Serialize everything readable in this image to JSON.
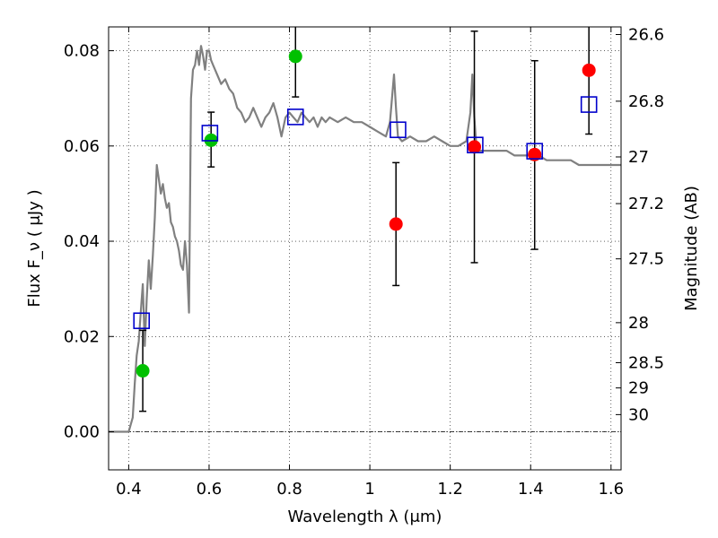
{
  "chart_data": {
    "type": "scatter",
    "xlabel": "Wavelength  λ (μm)",
    "ylabel": "Flux  F_ν  ( μJy )",
    "y2label": "Magnitude (AB)",
    "xlim": [
      0.35,
      1.625
    ],
    "ylim": [
      -0.008,
      0.085
    ],
    "grid": true,
    "x_ticks": [
      {
        "value": 0.4,
        "label": "0.4"
      },
      {
        "value": 0.6,
        "label": "0.6"
      },
      {
        "value": 0.8,
        "label": "0.8"
      },
      {
        "value": 1.0,
        "label": "1"
      },
      {
        "value": 1.2,
        "label": "1.2"
      },
      {
        "value": 1.4,
        "label": "1.4"
      },
      {
        "value": 1.6,
        "label": "1.6"
      }
    ],
    "y_ticks": [
      {
        "value": 0.0,
        "label": "0.00"
      },
      {
        "value": 0.02,
        "label": "0.02"
      },
      {
        "value": 0.04,
        "label": "0.04"
      },
      {
        "value": 0.06,
        "label": "0.06"
      },
      {
        "value": 0.08,
        "label": "0.08"
      }
    ],
    "y2_ticks": [
      {
        "flux": 0.0834,
        "label": "26.6"
      },
      {
        "flux": 0.0694,
        "label": "26.8"
      },
      {
        "flux": 0.0577,
        "label": "27"
      },
      {
        "flux": 0.0479,
        "label": "27.2"
      },
      {
        "flux": 0.0363,
        "label": "27.5"
      },
      {
        "flux": 0.0229,
        "label": "28"
      },
      {
        "flux": 0.0145,
        "label": "28.5"
      },
      {
        "flux": 0.0092,
        "label": "29"
      },
      {
        "flux": 0.0036,
        "label": "30"
      }
    ],
    "colors": {
      "model": "#808080",
      "detected": "#00c000",
      "marginal": "#ff0000",
      "model_flux": "#0000cc",
      "errorbar": "#000000"
    },
    "model_spectrum": {
      "x": [
        0.35,
        0.4,
        0.41,
        0.415,
        0.42,
        0.425,
        0.43,
        0.435,
        0.44,
        0.445,
        0.45,
        0.455,
        0.46,
        0.465,
        0.47,
        0.475,
        0.48,
        0.485,
        0.49,
        0.495,
        0.5,
        0.505,
        0.51,
        0.515,
        0.52,
        0.525,
        0.53,
        0.535,
        0.54,
        0.545,
        0.55,
        0.555,
        0.56,
        0.565,
        0.57,
        0.575,
        0.58,
        0.585,
        0.59,
        0.595,
        0.6,
        0.605,
        0.61,
        0.62,
        0.63,
        0.64,
        0.65,
        0.66,
        0.67,
        0.68,
        0.69,
        0.7,
        0.71,
        0.72,
        0.73,
        0.74,
        0.75,
        0.76,
        0.77,
        0.78,
        0.79,
        0.8,
        0.81,
        0.82,
        0.83,
        0.84,
        0.85,
        0.86,
        0.87,
        0.88,
        0.89,
        0.9,
        0.92,
        0.94,
        0.96,
        0.98,
        1.0,
        1.02,
        1.04,
        1.05,
        1.06,
        1.065,
        1.07,
        1.08,
        1.1,
        1.12,
        1.14,
        1.16,
        1.18,
        1.2,
        1.22,
        1.24,
        1.25,
        1.255,
        1.26,
        1.265,
        1.27,
        1.28,
        1.3,
        1.32,
        1.34,
        1.36,
        1.38,
        1.4,
        1.42,
        1.44,
        1.46,
        1.48,
        1.5,
        1.52,
        1.54,
        1.56,
        1.58,
        1.6,
        1.625
      ],
      "y": [
        0.0,
        0.0,
        0.003,
        0.01,
        0.016,
        0.019,
        0.025,
        0.031,
        0.018,
        0.028,
        0.036,
        0.03,
        0.037,
        0.045,
        0.056,
        0.053,
        0.05,
        0.052,
        0.049,
        0.047,
        0.048,
        0.044,
        0.043,
        0.041,
        0.04,
        0.038,
        0.035,
        0.034,
        0.04,
        0.035,
        0.025,
        0.07,
        0.076,
        0.077,
        0.08,
        0.077,
        0.081,
        0.079,
        0.076,
        0.08,
        0.08,
        0.078,
        0.077,
        0.075,
        0.073,
        0.074,
        0.072,
        0.071,
        0.068,
        0.067,
        0.065,
        0.066,
        0.068,
        0.066,
        0.064,
        0.066,
        0.067,
        0.069,
        0.066,
        0.062,
        0.066,
        0.067,
        0.066,
        0.065,
        0.067,
        0.066,
        0.065,
        0.066,
        0.064,
        0.066,
        0.065,
        0.066,
        0.065,
        0.066,
        0.065,
        0.065,
        0.064,
        0.063,
        0.062,
        0.065,
        0.075,
        0.068,
        0.062,
        0.061,
        0.062,
        0.061,
        0.061,
        0.062,
        0.061,
        0.06,
        0.06,
        0.061,
        0.067,
        0.075,
        0.066,
        0.06,
        0.059,
        0.059,
        0.059,
        0.059,
        0.059,
        0.058,
        0.058,
        0.058,
        0.058,
        0.057,
        0.057,
        0.057,
        0.057,
        0.056,
        0.056,
        0.056,
        0.056,
        0.056,
        0.056
      ]
    },
    "series": [
      {
        "marker": "circle",
        "color": "#00c000",
        "x": [
          0.435,
          0.605,
          0.815
        ],
        "y": [
          0.0128,
          0.0612,
          0.0788
        ],
        "yerr_low": [
          0.0085,
          0.0056,
          0.0085
        ],
        "yerr_high": [
          0.0085,
          0.0059,
          0.0085
        ]
      },
      {
        "marker": "circle",
        "color": "#ff0000",
        "x": [
          1.065,
          1.26,
          1.41,
          1.545
        ],
        "y": [
          0.0436,
          0.0598,
          0.0582,
          0.0759
        ],
        "yerr_low": [
          0.0129,
          0.0243,
          0.0199,
          0.0134
        ],
        "yerr_high": [
          0.0129,
          0.0243,
          0.0197,
          0.0134
        ]
      },
      {
        "marker": "open-square",
        "color": "#0000cc",
        "x": [
          0.432,
          0.602,
          0.815,
          1.07,
          1.262,
          1.41,
          1.545
        ],
        "y": [
          0.0233,
          0.0627,
          0.0661,
          0.0634,
          0.0602,
          0.0589,
          0.0687
        ]
      }
    ]
  }
}
